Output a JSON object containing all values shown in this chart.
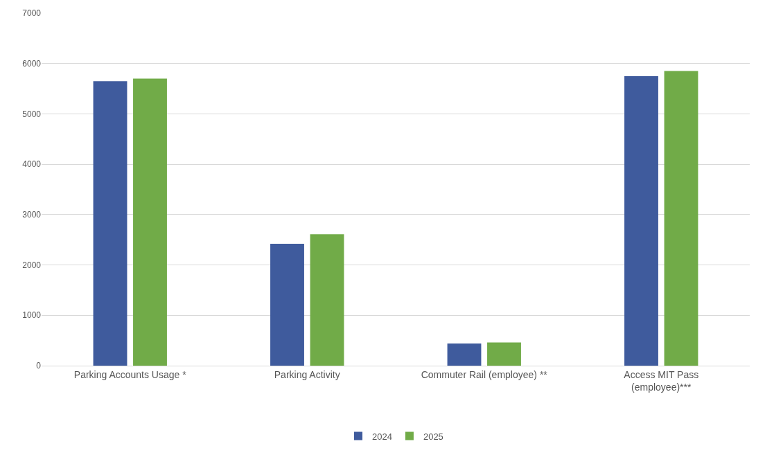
{
  "chart_data": {
    "type": "bar",
    "categories": [
      "Parking Accounts Usage *",
      "Parking Activity",
      "Commuter Rail (employee) **",
      "Access MIT Pass\n(employee)***"
    ],
    "series": [
      {
        "name": "2024",
        "color": "#3f5b9d",
        "values": [
          5650,
          2420,
          440,
          5750
        ]
      },
      {
        "name": "2025",
        "color": "#71ab48",
        "values": [
          5700,
          2610,
          460,
          5850
        ]
      }
    ],
    "ylim": [
      0,
      7000
    ],
    "yticks": [
      0,
      1000,
      2000,
      3000,
      4000,
      5000,
      6000,
      7000
    ],
    "grid": "y",
    "legend": "bottom"
  }
}
